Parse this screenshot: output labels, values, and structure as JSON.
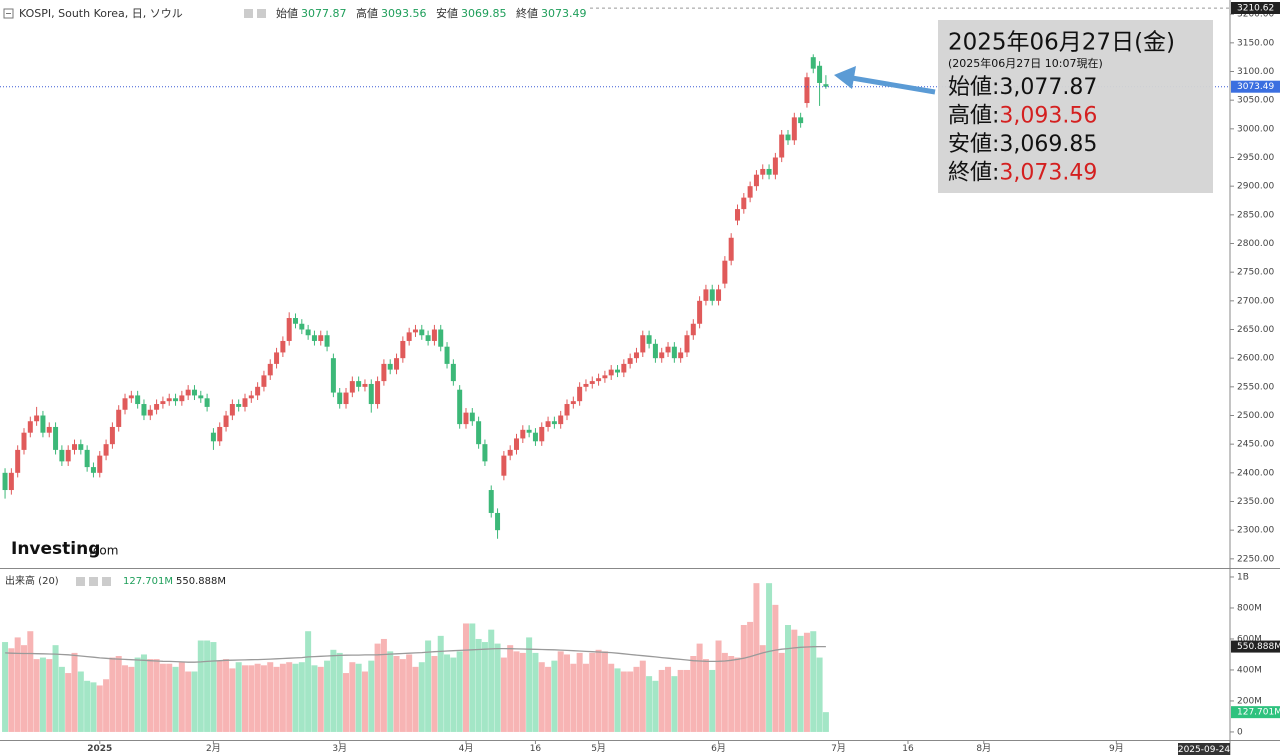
{
  "header": {
    "symbol": "KOSPI, South Korea, 日, ソウル",
    "labels": [
      "始値",
      "高値",
      "安値",
      "終値"
    ]
  },
  "tooltip": {
    "title": "2025年06月27日(金)",
    "subtitle": "(2025年06月27日 10:07現在)",
    "rows": [
      {
        "label": "始値:",
        "value": "3,077.87",
        "color": "#111111"
      },
      {
        "label": "高値:",
        "value": "3,093.56",
        "color": "#d42020"
      },
      {
        "label": "安値:",
        "value": "3,069.85",
        "color": "#111111"
      },
      {
        "label": "終値:",
        "value": "3,073.49",
        "color": "#d42020"
      }
    ]
  },
  "logo": {
    "main": "Investing",
    "suffix": ".com"
  },
  "x_axis_end_label": "2025-09-24",
  "chart_data": [
    {
      "type": "candlestick",
      "up_color": "#e05a5a",
      "down_color": "#3cb878",
      "xlim": [
        -0.8,
        194
      ],
      "ylim": [
        2234,
        3216
      ],
      "high_marker": 3210.62,
      "xticks": [
        {
          "value": 15,
          "label": "2025"
        },
        {
          "value": 33,
          "label": "2月"
        },
        {
          "value": 53,
          "label": "3月"
        },
        {
          "value": 73,
          "label": "4月"
        },
        {
          "value": 84,
          "label": "16"
        },
        {
          "value": 94,
          "label": "5月"
        },
        {
          "value": 113,
          "label": "6月"
        },
        {
          "value": 132,
          "label": "7月"
        },
        {
          "value": 143,
          "label": "16"
        },
        {
          "value": 155,
          "label": "8月"
        },
        {
          "value": 176,
          "label": "9月"
        }
      ],
      "yticks": [
        {
          "value": 2250,
          "label": "2250.00"
        },
        {
          "value": 2300,
          "label": "2300.00"
        },
        {
          "value": 2350,
          "label": "2350.00"
        },
        {
          "value": 2400,
          "label": "2400.00"
        },
        {
          "value": 2450,
          "label": "2450.00"
        },
        {
          "value": 2500,
          "label": "2500.00"
        },
        {
          "value": 2550,
          "label": "2550.00"
        },
        {
          "value": 2600,
          "label": "2600.00"
        },
        {
          "value": 2650,
          "label": "2650.00"
        },
        {
          "value": 2700,
          "label": "2700.00"
        },
        {
          "value": 2750,
          "label": "2750.00"
        },
        {
          "value": 2800,
          "label": "2800.00"
        },
        {
          "value": 2850,
          "label": "2850.00"
        },
        {
          "value": 2900,
          "label": "2900.00"
        },
        {
          "value": 2950,
          "label": "2950.00"
        },
        {
          "value": 3000,
          "label": "3000.00"
        },
        {
          "value": 3050,
          "label": "3050.00"
        },
        {
          "value": 3100,
          "label": "3100.00"
        },
        {
          "value": 3150,
          "label": "3150.00"
        },
        {
          "value": 3200,
          "label": "3200.00"
        }
      ],
      "open": [
        2400,
        2370,
        2400,
        2440,
        2470,
        2490,
        2500,
        2470,
        2480,
        2440,
        2420,
        2440,
        2450,
        2440,
        2410,
        2400,
        2430,
        2450,
        2480,
        2510,
        2530,
        2535,
        2520,
        2500,
        2510,
        2520,
        2525,
        2530,
        2525,
        2535,
        2545,
        2535,
        2530,
        2470,
        2455,
        2480,
        2500,
        2520,
        2515,
        2530,
        2535,
        2550,
        2570,
        2590,
        2610,
        2630,
        2670,
        2660,
        2650,
        2640,
        2630,
        2640,
        2600,
        2540,
        2520,
        2540,
        2560,
        2550,
        2555,
        2520,
        2560,
        2590,
        2580,
        2600,
        2630,
        2645,
        2650,
        2640,
        2630,
        2650,
        2620,
        2590,
        2545,
        2485,
        2505,
        2490,
        2450,
        2370,
        2330,
        2395,
        2430,
        2440,
        2460,
        2475,
        2470,
        2455,
        2480,
        2490,
        2485,
        2500,
        2520,
        2525,
        2550,
        2555,
        2560,
        2565,
        2570,
        2580,
        2575,
        2590,
        2600,
        2610,
        2640,
        2625,
        2600,
        2610,
        2620,
        2600,
        2610,
        2640,
        2660,
        2700,
        2720,
        2700,
        2730,
        2770,
        2840,
        2860,
        2880,
        2900,
        2920,
        2930,
        2920,
        2950,
        2990,
        2980,
        3020,
        3045,
        3125,
        3110,
        3077.87
      ],
      "high": [
        2408,
        2408,
        2448,
        2478,
        2498,
        2515,
        2508,
        2488,
        2488,
        2448,
        2448,
        2458,
        2458,
        2448,
        2418,
        2438,
        2458,
        2488,
        2518,
        2538,
        2543,
        2543,
        2528,
        2518,
        2528,
        2533,
        2538,
        2538,
        2543,
        2553,
        2553,
        2543,
        2538,
        2478,
        2488,
        2508,
        2528,
        2528,
        2538,
        2543,
        2558,
        2578,
        2598,
        2618,
        2638,
        2680,
        2678,
        2668,
        2658,
        2648,
        2648,
        2648,
        2608,
        2548,
        2548,
        2568,
        2568,
        2563,
        2563,
        2568,
        2598,
        2598,
        2608,
        2638,
        2653,
        2658,
        2658,
        2648,
        2658,
        2658,
        2628,
        2598,
        2553,
        2513,
        2513,
        2498,
        2458,
        2378,
        2338,
        2438,
        2448,
        2468,
        2483,
        2483,
        2478,
        2488,
        2498,
        2498,
        2508,
        2528,
        2533,
        2558,
        2563,
        2568,
        2573,
        2578,
        2588,
        2588,
        2598,
        2608,
        2618,
        2648,
        2648,
        2633,
        2618,
        2628,
        2628,
        2618,
        2648,
        2668,
        2708,
        2728,
        2728,
        2728,
        2778,
        2818,
        2868,
        2888,
        2908,
        2928,
        2938,
        2938,
        2958,
        2998,
        2998,
        3028,
        3028,
        3098,
        3130,
        3118,
        3093.56
      ],
      "low": [
        2355,
        2362,
        2392,
        2432,
        2462,
        2482,
        2462,
        2462,
        2432,
        2412,
        2412,
        2432,
        2432,
        2402,
        2392,
        2392,
        2422,
        2442,
        2472,
        2502,
        2522,
        2512,
        2492,
        2492,
        2502,
        2512,
        2517,
        2517,
        2517,
        2527,
        2527,
        2522,
        2507,
        2440,
        2447,
        2472,
        2492,
        2507,
        2507,
        2522,
        2527,
        2542,
        2562,
        2582,
        2602,
        2622,
        2652,
        2642,
        2632,
        2622,
        2622,
        2612,
        2532,
        2512,
        2512,
        2532,
        2542,
        2542,
        2505,
        2512,
        2552,
        2572,
        2572,
        2592,
        2622,
        2637,
        2632,
        2622,
        2622,
        2612,
        2582,
        2552,
        2477,
        2477,
        2482,
        2442,
        2412,
        2322,
        2285,
        2387,
        2422,
        2432,
        2452,
        2462,
        2447,
        2447,
        2472,
        2477,
        2477,
        2492,
        2512,
        2517,
        2542,
        2547,
        2552,
        2557,
        2562,
        2567,
        2567,
        2582,
        2592,
        2602,
        2617,
        2592,
        2592,
        2602,
        2592,
        2592,
        2602,
        2632,
        2652,
        2692,
        2692,
        2692,
        2722,
        2762,
        2832,
        2852,
        2872,
        2892,
        2912,
        2912,
        2912,
        2942,
        2972,
        2972,
        3002,
        3037,
        3097,
        3040,
        3069.85
      ],
      "close": [
        2370,
        2400,
        2440,
        2470,
        2490,
        2500,
        2470,
        2480,
        2440,
        2420,
        2440,
        2450,
        2440,
        2410,
        2400,
        2430,
        2450,
        2480,
        2510,
        2530,
        2535,
        2520,
        2500,
        2510,
        2520,
        2525,
        2530,
        2525,
        2535,
        2545,
        2535,
        2530,
        2515,
        2455,
        2480,
        2500,
        2520,
        2515,
        2530,
        2535,
        2550,
        2570,
        2590,
        2610,
        2630,
        2670,
        2660,
        2650,
        2640,
        2630,
        2640,
        2620,
        2540,
        2520,
        2540,
        2560,
        2550,
        2555,
        2520,
        2560,
        2590,
        2580,
        2600,
        2630,
        2645,
        2650,
        2640,
        2630,
        2650,
        2620,
        2590,
        2560,
        2485,
        2505,
        2490,
        2450,
        2420,
        2330,
        2300,
        2430,
        2440,
        2460,
        2475,
        2470,
        2455,
        2480,
        2490,
        2485,
        2500,
        2520,
        2525,
        2550,
        2555,
        2560,
        2565,
        2570,
        2580,
        2575,
        2590,
        2600,
        2610,
        2640,
        2625,
        2600,
        2610,
        2620,
        2600,
        2610,
        2640,
        2660,
        2700,
        2720,
        2700,
        2720,
        2770,
        2810,
        2860,
        2880,
        2900,
        2920,
        2930,
        2920,
        2950,
        2990,
        2980,
        3020,
        3010,
        3090,
        3105,
        3080,
        3073.49
      ]
    },
    {
      "type": "bar",
      "title": "出来高 (20)",
      "up_color": "#f7b4b4",
      "down_color": "#a3e6c6",
      "xlim": [
        -0.8,
        194
      ],
      "ylim": [
        -52,
        1045
      ],
      "yticks": [
        0,
        {
          "value": 200,
          "label": "200M"
        },
        {
          "value": 400,
          "label": "400M"
        },
        {
          "value": 600,
          "label": "600M"
        },
        {
          "value": 800,
          "label": "800M"
        },
        {
          "value": 1000,
          "label": "1B"
        }
      ],
      "last_label": "127.701M",
      "ma_last_label": "550.888M",
      "series": [
        {
          "name": "volume",
          "values": [
            580,
            540,
            610,
            560,
            650,
            470,
            480,
            470,
            560,
            420,
            380,
            510,
            390,
            330,
            320,
            300,
            340,
            480,
            490,
            430,
            420,
            480,
            500,
            470,
            470,
            440,
            440,
            420,
            450,
            390,
            390,
            590,
            590,
            580,
            460,
            470,
            410,
            450,
            430,
            430,
            440,
            430,
            450,
            420,
            440,
            450,
            440,
            450,
            650,
            430,
            420,
            460,
            530,
            510,
            380,
            450,
            440,
            390,
            460,
            570,
            600,
            520,
            490,
            470,
            500,
            420,
            450,
            590,
            490,
            620,
            500,
            480,
            520,
            700,
            700,
            600,
            580,
            660,
            570,
            480,
            560,
            520,
            510,
            610,
            510,
            450,
            420,
            460,
            520,
            500,
            440,
            510,
            440,
            510,
            530,
            520,
            440,
            410,
            390,
            390,
            420,
            460,
            360,
            330,
            400,
            420,
            360,
            400,
            400,
            490,
            570,
            470,
            400,
            590,
            510,
            490,
            480,
            690,
            710,
            960,
            560,
            960,
            820,
            510,
            690,
            660,
            620,
            640,
            650,
            480,
            127.701
          ]
        },
        {
          "name": "ma20",
          "color": "#9a9a9a",
          "values": [
            510,
            508,
            507,
            506,
            506,
            505,
            504,
            503,
            502,
            500,
            498,
            494,
            490,
            486,
            482,
            478,
            475,
            472,
            470,
            468,
            466,
            464,
            462,
            460,
            458,
            456,
            455,
            454,
            452,
            450,
            450,
            452,
            455,
            458,
            460,
            462,
            463,
            464,
            465,
            466,
            467,
            468,
            470,
            472,
            474,
            476,
            478,
            480,
            484,
            486,
            488,
            490,
            492,
            494,
            495,
            496,
            496,
            497,
            497,
            498,
            500,
            502,
            504,
            506,
            508,
            510,
            512,
            515,
            518,
            520,
            522,
            524,
            526,
            528,
            530,
            532,
            534,
            536,
            538,
            538,
            537,
            536,
            535,
            534,
            533,
            532,
            531,
            530,
            528,
            526,
            524,
            522,
            520,
            518,
            516,
            514,
            512,
            508,
            504,
            500,
            496,
            492,
            488,
            484,
            480,
            476,
            472,
            468,
            464,
            460,
            458,
            456,
            455,
            456,
            458,
            462,
            468,
            476,
            486,
            498,
            510,
            520,
            528,
            534,
            538,
            542,
            546,
            548,
            550,
            551,
            550.888
          ]
        }
      ]
    }
  ]
}
